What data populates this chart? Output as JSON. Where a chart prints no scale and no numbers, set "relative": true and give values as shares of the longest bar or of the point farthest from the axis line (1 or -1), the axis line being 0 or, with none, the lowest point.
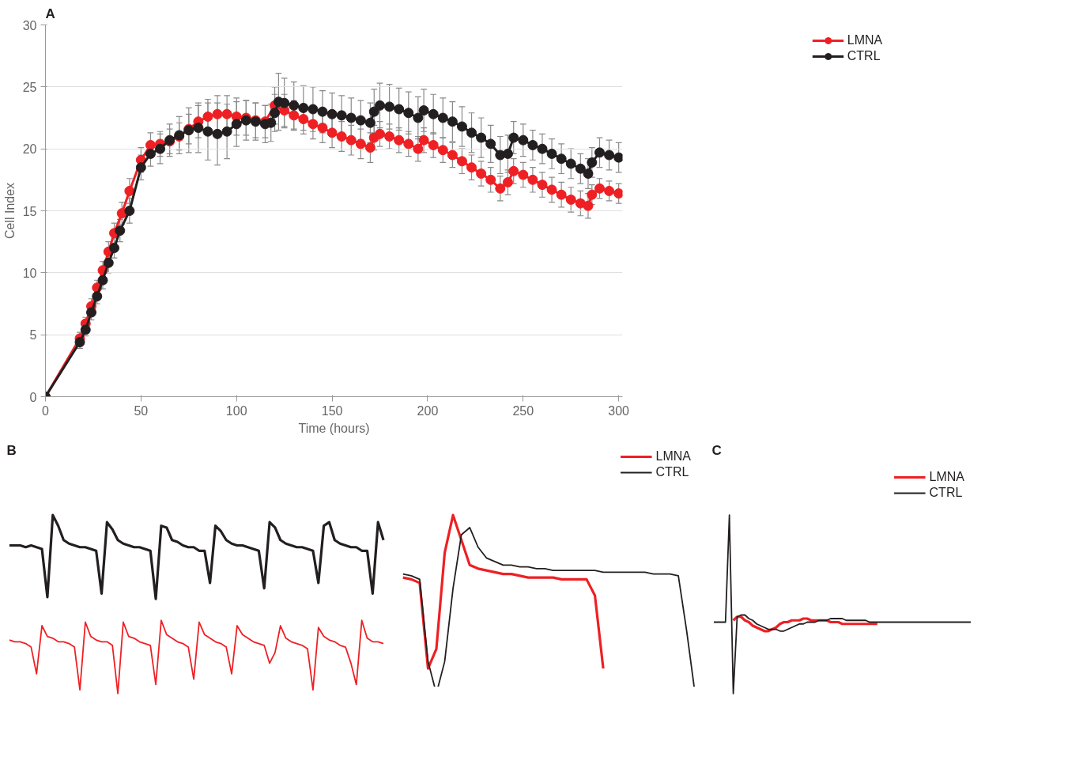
{
  "chart_data": [
    {
      "type": "line",
      "title": "A",
      "xlabel": "Time (hours)",
      "ylabel": "Cell Index",
      "xlim": [
        0,
        302
      ],
      "xticks": [
        0,
        50,
        100,
        150,
        200,
        250,
        300
      ],
      "ylim": [
        0,
        30
      ],
      "yticks": [
        0,
        5,
        10,
        15,
        20,
        25,
        30
      ],
      "grid": "y",
      "legend": "right",
      "marker": "circle",
      "line_style": "solid",
      "series": [
        {
          "name": "LMNA",
          "color": "#ee2024",
          "x": [
            0,
            18,
            21,
            24,
            27,
            30,
            33,
            36,
            40,
            44,
            50,
            55,
            60,
            65,
            70,
            75,
            80,
            85,
            90,
            95,
            100,
            105,
            110,
            115,
            120,
            125,
            130,
            135,
            140,
            145,
            150,
            155,
            160,
            165,
            170,
            172,
            175,
            180,
            185,
            190,
            195,
            198,
            203,
            208,
            213,
            218,
            223,
            228,
            233,
            238,
            242,
            245,
            250,
            255,
            260,
            265,
            270,
            275,
            280,
            284,
            286,
            290,
            295,
            300
          ],
          "values": [
            0,
            4.7,
            5.9,
            7.3,
            8.8,
            10.2,
            11.7,
            13.2,
            14.8,
            16.6,
            19.1,
            20.3,
            20.4,
            20.6,
            21.0,
            21.6,
            22.2,
            22.6,
            22.8,
            22.8,
            22.6,
            22.5,
            22.3,
            22.2,
            23.5,
            23.1,
            22.7,
            22.4,
            22.0,
            21.7,
            21.3,
            21.0,
            20.7,
            20.4,
            20.1,
            20.9,
            21.2,
            21.0,
            20.7,
            20.4,
            20.0,
            20.7,
            20.3,
            19.9,
            19.5,
            19.0,
            18.5,
            18.0,
            17.5,
            16.8,
            17.3,
            18.2,
            17.9,
            17.5,
            17.1,
            16.7,
            16.3,
            15.9,
            15.6,
            15.4,
            16.3,
            16.8,
            16.6,
            16.4
          ],
          "errors": [
            null,
            0.5,
            0.5,
            0.6,
            0.6,
            0.7,
            0.8,
            0.8,
            0.9,
            1.0,
            1.0,
            1.0,
            1.0,
            1.0,
            1.1,
            1.2,
            1.3,
            1.4,
            1.5,
            1.5,
            1.5,
            1.4,
            1.4,
            1.3,
            1.5,
            1.3,
            1.2,
            1.2,
            1.2,
            1.2,
            1.2,
            1.2,
            1.2,
            1.2,
            1.2,
            1.0,
            1.0,
            1.0,
            1.0,
            1.0,
            1.0,
            1.0,
            1.0,
            1.0,
            1.0,
            1.0,
            1.0,
            1.0,
            1.0,
            1.0,
            1.0,
            1.0,
            1.0,
            1.0,
            1.0,
            1.0,
            1.0,
            1.0,
            1.0,
            1.0,
            0.8,
            0.8,
            0.8,
            0.8
          ]
        },
        {
          "name": "CTRL",
          "color": "#231f20",
          "x": [
            0,
            18,
            21,
            24,
            27,
            30,
            33,
            36,
            39,
            44,
            50,
            55,
            60,
            65,
            70,
            75,
            80,
            85,
            90,
            95,
            100,
            105,
            110,
            115,
            118,
            120,
            122,
            125,
            130,
            135,
            140,
            145,
            150,
            155,
            160,
            165,
            170,
            172,
            175,
            180,
            185,
            190,
            195,
            198,
            203,
            208,
            213,
            218,
            223,
            228,
            233,
            238,
            242,
            245,
            250,
            255,
            260,
            265,
            270,
            275,
            280,
            284,
            286,
            290,
            295,
            300
          ],
          "values": [
            0,
            4.4,
            5.4,
            6.8,
            8.1,
            9.4,
            10.8,
            12.0,
            13.4,
            15.0,
            18.5,
            19.6,
            20.0,
            20.7,
            21.1,
            21.5,
            21.7,
            21.4,
            21.2,
            21.4,
            22.0,
            22.3,
            22.2,
            22.0,
            22.1,
            22.9,
            23.8,
            23.7,
            23.5,
            23.3,
            23.2,
            23.0,
            22.8,
            22.7,
            22.5,
            22.3,
            22.1,
            23.0,
            23.5,
            23.4,
            23.2,
            22.9,
            22.5,
            23.1,
            22.8,
            22.5,
            22.2,
            21.8,
            21.3,
            20.9,
            20.4,
            19.5,
            19.6,
            20.9,
            20.7,
            20.3,
            20.0,
            19.6,
            19.2,
            18.8,
            18.4,
            18.0,
            18.9,
            19.7,
            19.5,
            19.3
          ],
          "errors": [
            null,
            0.5,
            0.5,
            0.6,
            0.6,
            0.7,
            0.8,
            0.8,
            0.9,
            1.0,
            1.0,
            1.0,
            1.2,
            1.3,
            1.5,
            1.8,
            2.0,
            2.3,
            2.5,
            2.2,
            1.8,
            1.6,
            1.5,
            1.5,
            1.5,
            1.5,
            2.3,
            2.0,
            1.9,
            1.8,
            1.8,
            1.7,
            1.7,
            1.6,
            1.6,
            1.6,
            1.6,
            1.8,
            1.8,
            1.8,
            1.7,
            1.7,
            1.7,
            1.7,
            1.6,
            1.6,
            1.6,
            1.6,
            1.6,
            1.6,
            1.5,
            1.5,
            1.5,
            1.3,
            1.3,
            1.2,
            1.2,
            1.2,
            1.2,
            1.2,
            1.2,
            1.2,
            1.2,
            1.2,
            1.2,
            1.2
          ]
        }
      ]
    },
    {
      "type": "line",
      "title": "B",
      "relative": true,
      "grid": false,
      "legend": false,
      "categories": [
        null,
        null,
        null,
        null,
        null,
        null,
        null,
        null,
        null,
        null,
        null,
        null,
        null,
        null,
        null,
        null,
        null,
        null,
        null,
        null,
        null,
        null,
        null,
        null,
        null,
        null,
        null,
        null,
        null,
        null,
        null,
        null,
        null,
        null,
        null,
        null,
        null,
        null,
        null,
        null,
        null,
        null,
        null,
        null,
        null,
        null,
        null,
        null,
        null,
        null,
        null,
        null,
        null,
        null,
        null,
        null,
        null,
        null,
        null,
        null,
        null,
        null,
        null,
        null,
        null,
        null,
        null,
        null,
        null,
        null
      ],
      "series": [
        {
          "color": "#231f20",
          "values": [
            0.83,
            0.83,
            0.83,
            0.82,
            0.83,
            0.82,
            0.81,
            0.54,
            1.0,
            0.94,
            0.86,
            0.84,
            0.83,
            0.82,
            0.82,
            0.81,
            0.8,
            0.56,
            0.96,
            0.92,
            0.86,
            0.84,
            0.83,
            0.82,
            0.82,
            0.81,
            0.8,
            0.53,
            0.94,
            0.93,
            0.86,
            0.85,
            0.83,
            0.82,
            0.82,
            0.8,
            0.8,
            0.62,
            0.94,
            0.91,
            0.86,
            0.84,
            0.83,
            0.83,
            0.82,
            0.81,
            0.8,
            0.59,
            0.96,
            0.93,
            0.86,
            0.84,
            0.83,
            0.82,
            0.82,
            0.81,
            0.8,
            0.62,
            0.94,
            0.96,
            0.86,
            0.84,
            0.83,
            0.82,
            0.82,
            0.8,
            0.8,
            0.56,
            0.96,
            0.86
          ]
        },
        {
          "color": "#ee2024",
          "values": [
            0.3,
            0.29,
            0.29,
            0.28,
            0.26,
            0.11,
            0.38,
            0.32,
            0.31,
            0.29,
            0.29,
            0.28,
            0.26,
            0.02,
            0.4,
            0.32,
            0.3,
            0.29,
            0.29,
            0.27,
            0.0,
            0.4,
            0.32,
            0.31,
            0.29,
            0.28,
            0.27,
            0.05,
            0.41,
            0.33,
            0.31,
            0.29,
            0.28,
            0.26,
            0.08,
            0.4,
            0.33,
            0.31,
            0.29,
            0.28,
            0.26,
            0.11,
            0.38,
            0.33,
            0.31,
            0.29,
            0.28,
            0.27,
            0.17,
            0.23,
            0.38,
            0.31,
            0.29,
            0.28,
            0.27,
            0.25,
            0.02,
            0.37,
            0.32,
            0.3,
            0.29,
            0.27,
            0.26,
            0.17,
            0.05,
            0.41,
            0.31,
            0.29,
            0.29,
            0.28
          ]
        }
      ]
    },
    {
      "type": "line",
      "relative": true,
      "grid": false,
      "legend": "top right",
      "categories": [
        null,
        null,
        null,
        null,
        null,
        null,
        null,
        null,
        null,
        null,
        null,
        null,
        null,
        null,
        null,
        null,
        null,
        null,
        null,
        null,
        null,
        null,
        null,
        null,
        null,
        null,
        null,
        null,
        null,
        null,
        null,
        null,
        null,
        null,
        null,
        null
      ],
      "series": [
        {
          "name": "LMNA",
          "color": "#ee2024",
          "values": [
            0.65,
            0.64,
            0.62,
            0.14,
            0.25,
            0.79,
            1.0,
            0.86,
            0.72,
            0.7,
            0.69,
            0.68,
            0.67,
            0.67,
            0.66,
            0.65,
            0.65,
            0.65,
            0.65,
            0.64,
            0.64,
            0.64,
            0.64,
            0.55,
            0.14,
            null,
            null,
            null,
            null,
            null,
            null,
            null,
            null,
            null,
            null,
            null
          ]
        },
        {
          "name": "CTRL",
          "color": "#231f20",
          "values": [
            0.67,
            0.66,
            0.64,
            0.18,
            0.0,
            0.18,
            0.59,
            0.89,
            0.93,
            0.82,
            0.76,
            0.74,
            0.72,
            0.72,
            0.71,
            0.71,
            0.7,
            0.7,
            0.69,
            0.69,
            0.69,
            0.69,
            0.69,
            0.69,
            0.68,
            0.68,
            0.68,
            0.68,
            0.68,
            0.68,
            0.67,
            0.67,
            0.67,
            0.66,
            0.35,
            0.0
          ]
        }
      ]
    },
    {
      "type": "line",
      "title": "C",
      "relative": true,
      "grid": false,
      "legend": "top right",
      "categories": [
        null,
        null,
        null,
        null,
        null,
        null,
        null,
        null,
        null,
        null,
        null,
        null,
        null,
        null,
        null,
        null,
        null,
        null,
        null,
        null,
        null,
        null,
        null,
        null,
        null,
        null,
        null,
        null,
        null,
        null,
        null,
        null,
        null,
        null,
        null,
        null,
        null,
        null,
        null,
        null,
        null,
        null,
        null,
        null,
        null,
        null,
        null,
        null,
        null,
        null,
        null,
        null,
        null,
        null,
        null,
        null,
        null,
        null,
        null,
        null,
        null,
        null,
        null,
        null,
        null,
        null,
        null
      ],
      "series": [
        {
          "name": "LMNA",
          "color": "#ee2024",
          "values": [
            null,
            null,
            null,
            null,
            null,
            0.41,
            0.43,
            0.43,
            0.41,
            0.4,
            0.38,
            0.37,
            0.36,
            0.35,
            0.35,
            0.36,
            0.37,
            0.39,
            0.4,
            0.4,
            0.41,
            0.41,
            0.41,
            0.42,
            0.42,
            0.41,
            0.41,
            0.41,
            0.41,
            0.41,
            0.4,
            0.4,
            0.4,
            0.39,
            0.39,
            0.39,
            0.39,
            0.39,
            0.39,
            0.39,
            0.39,
            0.39,
            0.39,
            null,
            null,
            null,
            null,
            null,
            null,
            null,
            null,
            null,
            null,
            null,
            null,
            null,
            null,
            null,
            null,
            null,
            null,
            null,
            null,
            null,
            null,
            null,
            null
          ]
        },
        {
          "name": "CTRL",
          "color": "#231f20",
          "values": [
            0.4,
            0.4,
            0.4,
            0.4,
            1.0,
            0.0,
            0.43,
            0.44,
            0.44,
            0.42,
            0.41,
            0.39,
            0.38,
            0.37,
            0.36,
            0.36,
            0.36,
            0.35,
            0.35,
            0.36,
            0.37,
            0.38,
            0.39,
            0.39,
            0.4,
            0.4,
            0.4,
            0.41,
            0.41,
            0.41,
            0.42,
            0.42,
            0.42,
            0.42,
            0.41,
            0.41,
            0.41,
            0.41,
            0.41,
            0.41,
            0.4,
            0.4,
            0.4,
            0.4,
            0.4,
            0.4,
            0.4,
            0.4,
            0.4,
            0.4,
            0.4,
            0.4,
            0.4,
            0.4,
            0.4,
            0.4,
            0.4,
            0.4,
            0.4,
            0.4,
            0.4,
            0.4,
            0.4,
            0.4,
            0.4,
            0.4,
            0.4
          ]
        }
      ]
    }
  ]
}
